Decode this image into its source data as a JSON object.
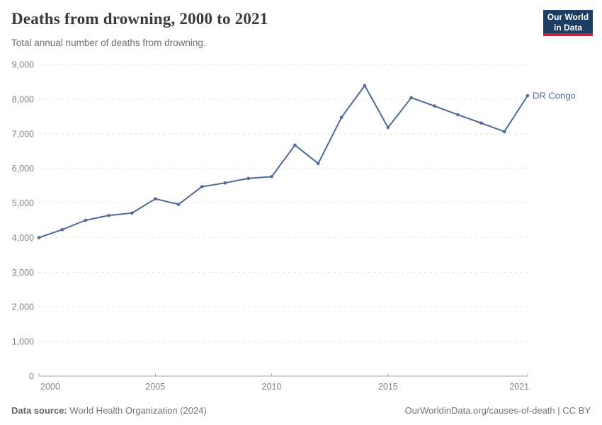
{
  "header": {
    "title": "Deaths from drowning, 2000 to 2021",
    "subtitle": "Total annual number of deaths from drowning."
  },
  "logo": {
    "line1": "Our World",
    "line2": "in Data",
    "bg_color": "#1d3d63",
    "accent_color": "#c4283c"
  },
  "chart_data": {
    "type": "line",
    "title": "Deaths from drowning, 2000 to 2021",
    "xlabel": "",
    "ylabel": "",
    "x": [
      2000,
      2001,
      2002,
      2003,
      2004,
      2005,
      2006,
      2007,
      2008,
      2009,
      2010,
      2011,
      2012,
      2013,
      2014,
      2015,
      2016,
      2017,
      2018,
      2019,
      2020,
      2021
    ],
    "series": [
      {
        "name": "DR Congo",
        "color": "#4C6A9C",
        "values": [
          4000,
          4230,
          4500,
          4640,
          4710,
          5120,
          4960,
          5470,
          5580,
          5710,
          5760,
          6670,
          6140,
          7470,
          8390,
          7180,
          8040,
          7800,
          7550,
          7310,
          7060,
          8100
        ]
      }
    ],
    "xlim": [
      2000,
      2021
    ],
    "ylim": [
      0,
      9000
    ],
    "x_ticks": [
      2000,
      2005,
      2010,
      2015,
      2021
    ],
    "x_tick_labels": [
      "2000",
      "2005",
      "2010",
      "2015",
      "2021"
    ],
    "y_ticks": [
      0,
      1000,
      2000,
      3000,
      4000,
      5000,
      6000,
      7000,
      8000,
      9000
    ],
    "y_tick_labels": [
      "0",
      "1,000",
      "2,000",
      "3,000",
      "4,000",
      "5,000",
      "6,000",
      "7,000",
      "8,000",
      "9,000"
    ],
    "grid": "horizontal-dashed",
    "legend_position": "series-end-label",
    "colors": {
      "grid": "#dddddd",
      "axis": "#a8a8a8",
      "tick_label": "#858585"
    }
  },
  "footer": {
    "source_label": "Data source:",
    "source_text": " World Health Organization (2024)",
    "credit": "OurWorldinData.org/causes-of-death | CC BY"
  }
}
